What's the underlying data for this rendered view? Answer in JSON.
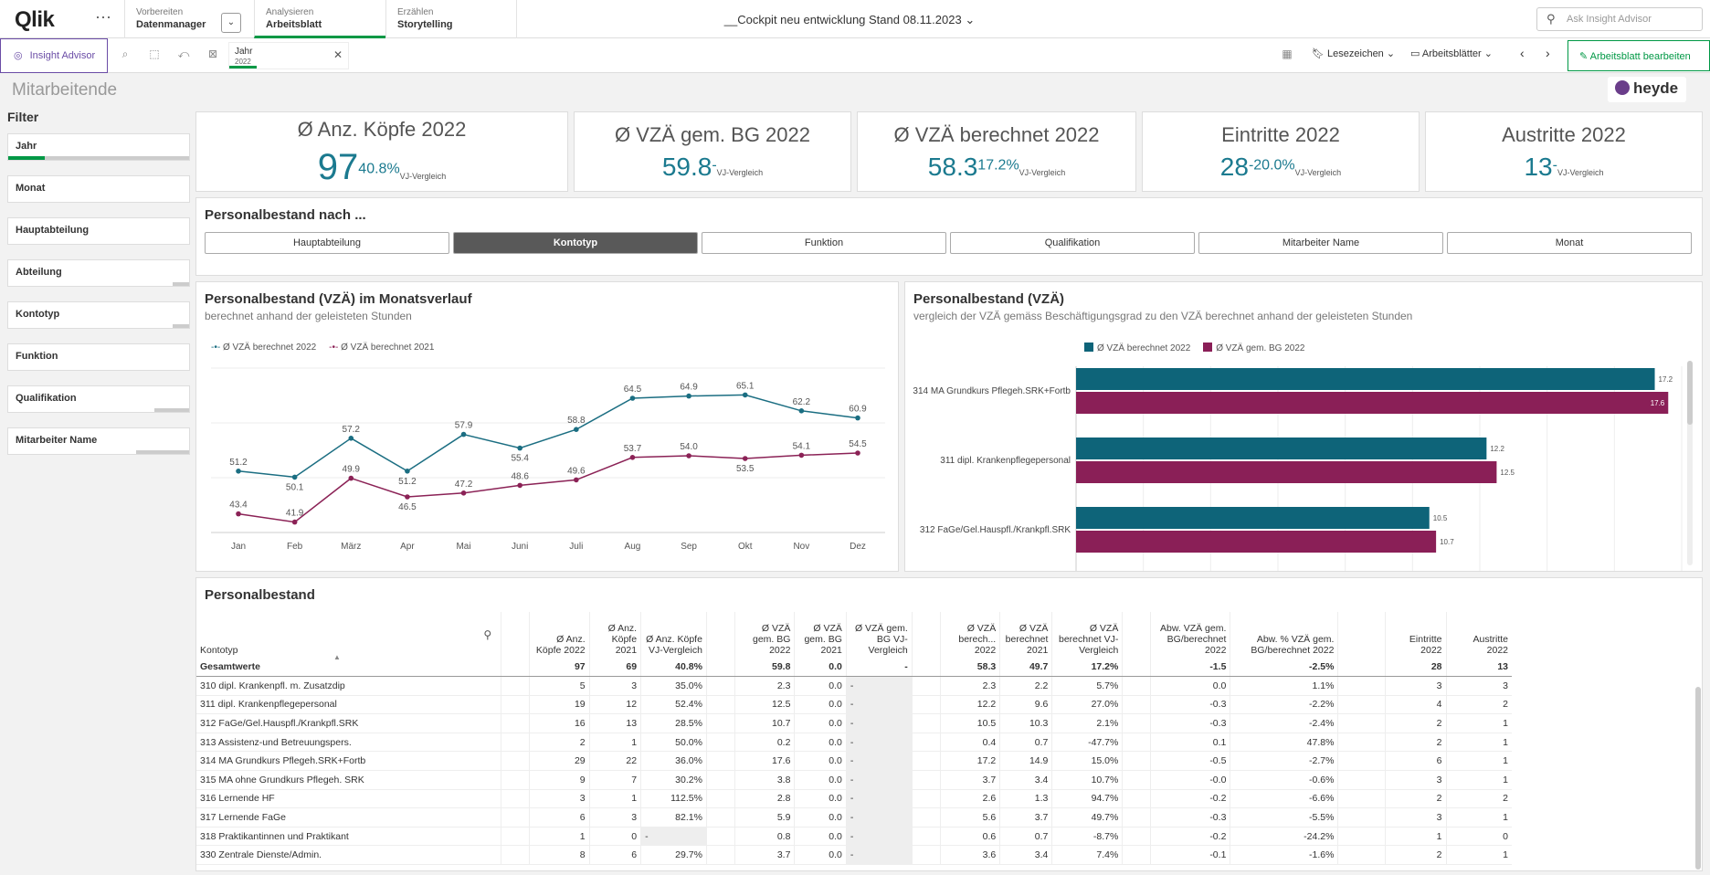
{
  "topbar": {
    "logo": "Qlik",
    "logo_q": "Q",
    "more": "···",
    "tabs": [
      {
        "small": "Vorbereiten",
        "main": "Datenmanager"
      },
      {
        "small": "Analysieren",
        "main": "Arbeitsblatt"
      },
      {
        "small": "Erzählen",
        "main": "Storytelling"
      }
    ],
    "app_title": "__Cockpit neu entwicklung Stand 08.11.2023",
    "ask_placeholder": "Ask Insight Advisor"
  },
  "toolbar": {
    "insight_advisor": "Insight Advisor",
    "selection_field": "Jahr",
    "selection_value": "2022",
    "bookmarks": "Lesezeichen",
    "sheets": "Arbeitsblätter",
    "edit_sheet": "Arbeitsblatt bearbeiten"
  },
  "sheet": {
    "title": "Mitarbeitende",
    "brand": "heyde"
  },
  "filter": {
    "header": "Filter",
    "items": [
      "Jahr",
      "Monat",
      "Hauptabteilung",
      "Abteilung",
      "Kontotyp",
      "Funktion",
      "Qualifikation",
      "Mitarbeiter Name"
    ]
  },
  "kpis": [
    {
      "title": "Ø Anz. Köpfe 2022",
      "value": "97",
      "delta": "40.8%",
      "cmp": "VJ-Vergleich"
    },
    {
      "title": "Ø VZÄ gem. BG 2022",
      "value": "59.8",
      "delta": "-",
      "cmp": "VJ-Vergleich"
    },
    {
      "title": "Ø VZÄ berechnet 2022",
      "value": "58.3",
      "delta": "17.2%",
      "cmp": "VJ-Vergleich"
    },
    {
      "title": "Eintritte 2022",
      "value": "28",
      "delta": "-20.0%",
      "cmp": "VJ-Vergleich"
    },
    {
      "title": "Austritte 2022",
      "value": "13",
      "delta": "-",
      "cmp": "VJ-Vergleich"
    }
  ],
  "dim_selector": {
    "title": "Personalbestand nach ...",
    "buttons": [
      "Hauptabteilung",
      "Kontotyp",
      "Funktion",
      "Qualifikation",
      "Mitarbeiter Name",
      "Monat"
    ],
    "active": "Kontotyp"
  },
  "line_chart": {
    "title": "Personalbestand (VZÄ) im Monatsverlauf",
    "subtitle": "berechnet anhand der geleisteten Stunden"
  },
  "bar_chart": {
    "title": "Personalbestand (VZÄ)",
    "subtitle": "vergleich der VZÄ gemäss Beschäftigungsgrad zu den VZÄ berechnet anhand der geleisteten Stunden"
  },
  "chart_data": [
    {
      "type": "line",
      "x": [
        "Jan",
        "Feb",
        "März",
        "Apr",
        "Mai",
        "Juni",
        "Juli",
        "Aug",
        "Sep",
        "Okt",
        "Nov",
        "Dez"
      ],
      "series": [
        {
          "name": "Ø VZÄ berechnet 2022",
          "color": "#1b6e82",
          "values": [
            51.2,
            50.1,
            57.2,
            51.2,
            57.9,
            55.4,
            58.8,
            64.5,
            64.9,
            65.1,
            62.2,
            60.9
          ]
        },
        {
          "name": "Ø VZÄ berechnet 2021",
          "color": "#8b2256",
          "values": [
            43.4,
            41.9,
            49.9,
            46.5,
            47.2,
            48.6,
            49.6,
            53.7,
            54.0,
            53.5,
            54.1,
            54.5
          ]
        }
      ],
      "ylim": [
        40,
        70
      ]
    },
    {
      "type": "bar",
      "orientation": "horizontal",
      "categories": [
        "314 MA Grundkurs Pflegeh.SRK+Fortb",
        "311 dipl. Krankenpflegepersonal",
        "312 FaGe/Gel.Hauspfl./Krankpfl.SRK"
      ],
      "series": [
        {
          "name": "Ø VZÄ berechnet 2022",
          "color": "#0e6479",
          "values": [
            17.2,
            12.2,
            10.5
          ]
        },
        {
          "name": "Ø VZÄ gem. BG 2022",
          "color": "#8a1f57",
          "values": [
            17.6,
            12.5,
            10.7
          ]
        }
      ],
      "xlim": [
        0,
        18
      ]
    }
  ],
  "table": {
    "title": "Personalbestand",
    "headers": [
      "Kontotyp",
      "",
      "Ø Anz. Köpfe 2022",
      "Ø Anz. Köpfe 2021",
      "Ø Anz. Köpfe VJ-Vergleich",
      "",
      "Ø VZÄ gem. BG 2022",
      "Ø VZÄ gem. BG 2021",
      "Ø VZÄ gem. BG VJ-Vergleich",
      "",
      "Ø VZÄ berech... 2022",
      "Ø VZÄ berechnet 2021",
      "Ø VZÄ berechnet VJ-Vergleich",
      "",
      "Abw. VZÄ gem. BG/berechnet 2022",
      "Abw. % VZÄ gem. BG/berechnet 2022",
      "",
      "Eintritte 2022",
      "Austritte 2022"
    ],
    "totals": [
      "Gesamtwerte",
      "",
      "97",
      "69",
      "40.8%",
      "",
      "59.8",
      "0.0",
      "-",
      "",
      "58.3",
      "49.7",
      "17.2%",
      "",
      "-1.5",
      "-2.5%",
      "",
      "28",
      "13"
    ],
    "rows": [
      [
        "310 dipl. Krankenpfl. m. Zusatzdip",
        "",
        "5",
        "3",
        "35.0%",
        "",
        "2.3",
        "0.0",
        "-",
        "",
        "2.3",
        "2.2",
        "5.7%",
        "",
        "0.0",
        "1.1%",
        "",
        "3",
        "3"
      ],
      [
        "311 dipl. Krankenpflegepersonal",
        "",
        "19",
        "12",
        "52.4%",
        "",
        "12.5",
        "0.0",
        "-",
        "",
        "12.2",
        "9.6",
        "27.0%",
        "",
        "-0.3",
        "-2.2%",
        "",
        "4",
        "2"
      ],
      [
        "312 FaGe/Gel.Hauspfl./Krankpfl.SRK",
        "",
        "16",
        "13",
        "28.5%",
        "",
        "10.7",
        "0.0",
        "-",
        "",
        "10.5",
        "10.3",
        "2.1%",
        "",
        "-0.3",
        "-2.4%",
        "",
        "2",
        "1"
      ],
      [
        "313 Assistenz-und Betreuungspers.",
        "",
        "2",
        "1",
        "50.0%",
        "",
        "0.2",
        "0.0",
        "-",
        "",
        "0.4",
        "0.7",
        "-47.7%",
        "",
        "0.1",
        "47.8%",
        "",
        "2",
        "1"
      ],
      [
        "314 MA Grundkurs Pflegeh.SRK+Fortb",
        "",
        "29",
        "22",
        "36.0%",
        "",
        "17.6",
        "0.0",
        "-",
        "",
        "17.2",
        "14.9",
        "15.0%",
        "",
        "-0.5",
        "-2.7%",
        "",
        "6",
        "1"
      ],
      [
        "315 MA ohne Grundkurs Pflegeh. SRK",
        "",
        "9",
        "7",
        "30.2%",
        "",
        "3.8",
        "0.0",
        "-",
        "",
        "3.7",
        "3.4",
        "10.7%",
        "",
        "-0.0",
        "-0.6%",
        "",
        "3",
        "1"
      ],
      [
        "316 Lernende HF",
        "",
        "3",
        "1",
        "112.5%",
        "",
        "2.8",
        "0.0",
        "-",
        "",
        "2.6",
        "1.3",
        "94.7%",
        "",
        "-0.2",
        "-6.6%",
        "",
        "2",
        "2"
      ],
      [
        "317 Lernende FaGe",
        "",
        "6",
        "3",
        "82.1%",
        "",
        "5.9",
        "0.0",
        "-",
        "",
        "5.6",
        "3.7",
        "49.7%",
        "",
        "-0.3",
        "-5.5%",
        "",
        "3",
        "1"
      ],
      [
        "318 Praktikantinnen und Praktikant",
        "",
        "1",
        "0",
        "-",
        "",
        "0.8",
        "0.0",
        "-",
        "",
        "0.6",
        "0.7",
        "-8.7%",
        "",
        "-0.2",
        "-24.2%",
        "",
        "1",
        "0"
      ],
      [
        "330 Zentrale Dienste/Admin.",
        "",
        "8",
        "6",
        "29.7%",
        "",
        "3.7",
        "0.0",
        "-",
        "",
        "3.6",
        "3.4",
        "7.4%",
        "",
        "-0.1",
        "-1.6%",
        "",
        "2",
        "1"
      ]
    ]
  }
}
